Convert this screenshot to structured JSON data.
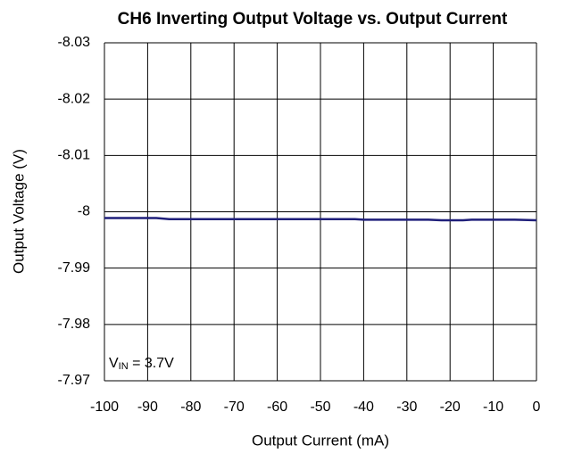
{
  "chart_data": {
    "type": "line",
    "title": "CH6 Inverting Output Voltage vs. Output Current",
    "xlabel": "Output Current (mA)",
    "ylabel": "Output Voltage (V)",
    "annotation": {
      "main": "V",
      "sub": "IN",
      "rest": " = 3.7V"
    },
    "x": [
      -100,
      -88,
      -85,
      -42,
      -40,
      -25,
      -22,
      -17,
      -15,
      -5,
      0
    ],
    "series": [
      {
        "name": "VIN = 3.7V",
        "color": "#1f1f7a",
        "values": [
          -7.9989,
          -7.9989,
          -7.9987,
          -7.9987,
          -7.9986,
          -7.9986,
          -7.9985,
          -7.9985,
          -7.9986,
          -7.9986,
          -7.9985
        ]
      }
    ],
    "xlim": [
      -100,
      0
    ],
    "xticks": [
      -100,
      -90,
      -80,
      -70,
      -60,
      -50,
      -40,
      -30,
      -20,
      -10,
      0
    ],
    "ylim": [
      -7.97,
      -8.03
    ],
    "yticks": [
      -8.03,
      -8.02,
      -8.01,
      -8,
      -7.99,
      -7.98,
      -7.97
    ],
    "grid": true
  }
}
